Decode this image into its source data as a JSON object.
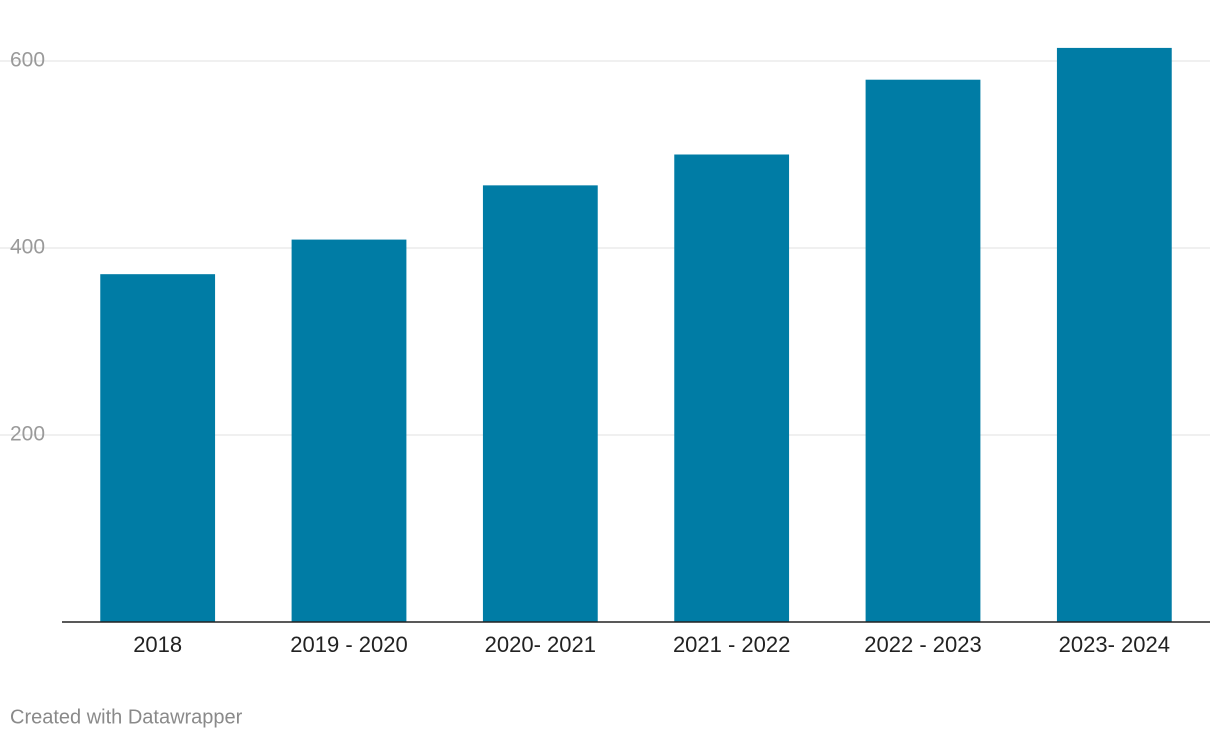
{
  "chart_data": {
    "type": "bar",
    "categories": [
      "2018",
      "2019 - 2020",
      "2020- 2021",
      "2021 - 2022",
      "2022 - 2023",
      "2023- 2024"
    ],
    "values": [
      372,
      409,
      467,
      500,
      580,
      614
    ],
    "color": "#007ca5",
    "ylim": [
      0,
      600
    ],
    "yticks": [
      200,
      400,
      600
    ],
    "grid": true,
    "footer": "Created with Datawrapper"
  }
}
